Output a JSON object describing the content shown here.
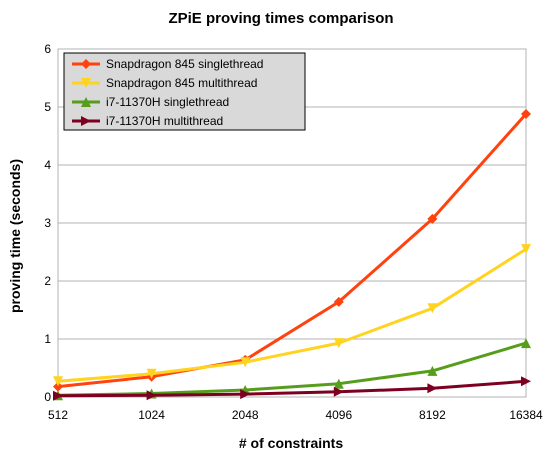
{
  "chart_data": {
    "type": "line",
    "title": "ZPiE proving times comparison",
    "xlabel": "# of constraints",
    "ylabel": "proving time (seconds)",
    "categories": [
      "512",
      "1024",
      "2048",
      "4096",
      "8192",
      "16384"
    ],
    "ylim": [
      0,
      6
    ],
    "yticks": [
      "0",
      "1",
      "2",
      "3",
      "4",
      "5",
      "6"
    ],
    "grid": true,
    "legend_position": "top-left",
    "series": [
      {
        "name": "Snapdragon 845 singlethread",
        "color": "#ff420e",
        "marker": "diamond",
        "values": [
          0.18,
          0.35,
          0.64,
          1.64,
          3.07,
          4.88
        ]
      },
      {
        "name": "Snapdragon 845 multithread",
        "color": "#ffd320",
        "marker": "triangle-down",
        "values": [
          0.27,
          0.4,
          0.6,
          0.93,
          1.53,
          2.55
        ]
      },
      {
        "name": "i7-11370H singlethread",
        "color": "#579d1c",
        "marker": "triangle-up",
        "values": [
          0.03,
          0.06,
          0.12,
          0.23,
          0.45,
          0.93
        ]
      },
      {
        "name": "i7-11370H multithread",
        "color": "#7e0021",
        "marker": "triangle-right",
        "values": [
          0.02,
          0.03,
          0.05,
          0.09,
          0.15,
          0.27
        ]
      }
    ]
  }
}
